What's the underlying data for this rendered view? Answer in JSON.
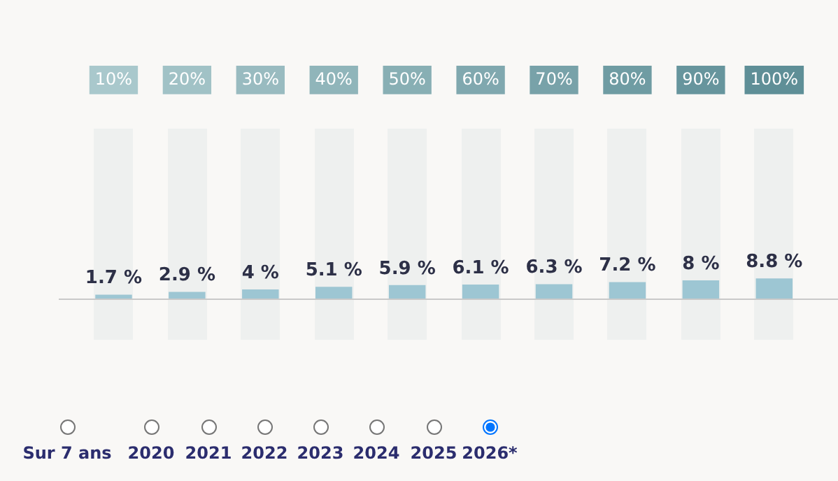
{
  "chart_data": {
    "type": "bar",
    "categories": [
      "10%",
      "20%",
      "30%",
      "40%",
      "50%",
      "60%",
      "70%",
      "80%",
      "90%",
      "100%"
    ],
    "values": [
      1.7,
      2.9,
      4,
      5.1,
      5.9,
      6.1,
      6.3,
      7.2,
      8,
      8.8
    ],
    "value_labels": [
      "1.7 %",
      "2.9 %",
      "4 %",
      "5.1 %",
      "5.9 %",
      "6.1 %",
      "6.3 %",
      "7.2 %",
      "8 %",
      "8.8 %"
    ],
    "color": "#9dc6d3",
    "legend": false,
    "grid": false,
    "tick_labels": "x",
    "annotations": [
      "Sur 7 ans",
      "2020",
      "2021",
      "2022",
      "2023",
      "2024",
      "2025",
      "2026*"
    ]
  }
}
